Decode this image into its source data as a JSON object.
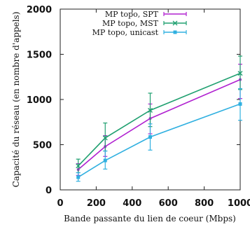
{
  "chart_data": {
    "type": "line",
    "xlabel": "Bande passante du lien de coeur (Mbps)",
    "ylabel": "Capacité du réseau (en nombre d'appels)",
    "xlim": [
      0,
      1000
    ],
    "ylim": [
      0,
      2000
    ],
    "xticks": [
      0,
      200,
      400,
      600,
      800,
      1000
    ],
    "yticks": [
      0,
      500,
      1000,
      1500,
      2000
    ],
    "grid": false,
    "legend_position": "top-right",
    "x": [
      100,
      250,
      500,
      1000
    ],
    "series": [
      {
        "name": "MP topo, SPT",
        "color": "#b020d0",
        "values": [
          225,
          480,
          790,
          1220
        ],
        "err_low": [
          160,
          370,
          620,
          1010
        ],
        "err_high": [
          290,
          600,
          950,
          1390
        ]
      },
      {
        "name": "MP topo, MST",
        "color": "#20a070",
        "values": [
          265,
          575,
          880,
          1290
        ],
        "err_low": [
          190,
          430,
          700,
          1110
        ],
        "err_high": [
          340,
          740,
          1070,
          1480
        ]
      },
      {
        "name": "MP topo, unicast",
        "color": "#30b0e0",
        "values": [
          140,
          325,
          585,
          950
        ],
        "err_low": [
          95,
          230,
          440,
          770
        ],
        "err_high": [
          190,
          430,
          730,
          1120
        ]
      }
    ]
  }
}
